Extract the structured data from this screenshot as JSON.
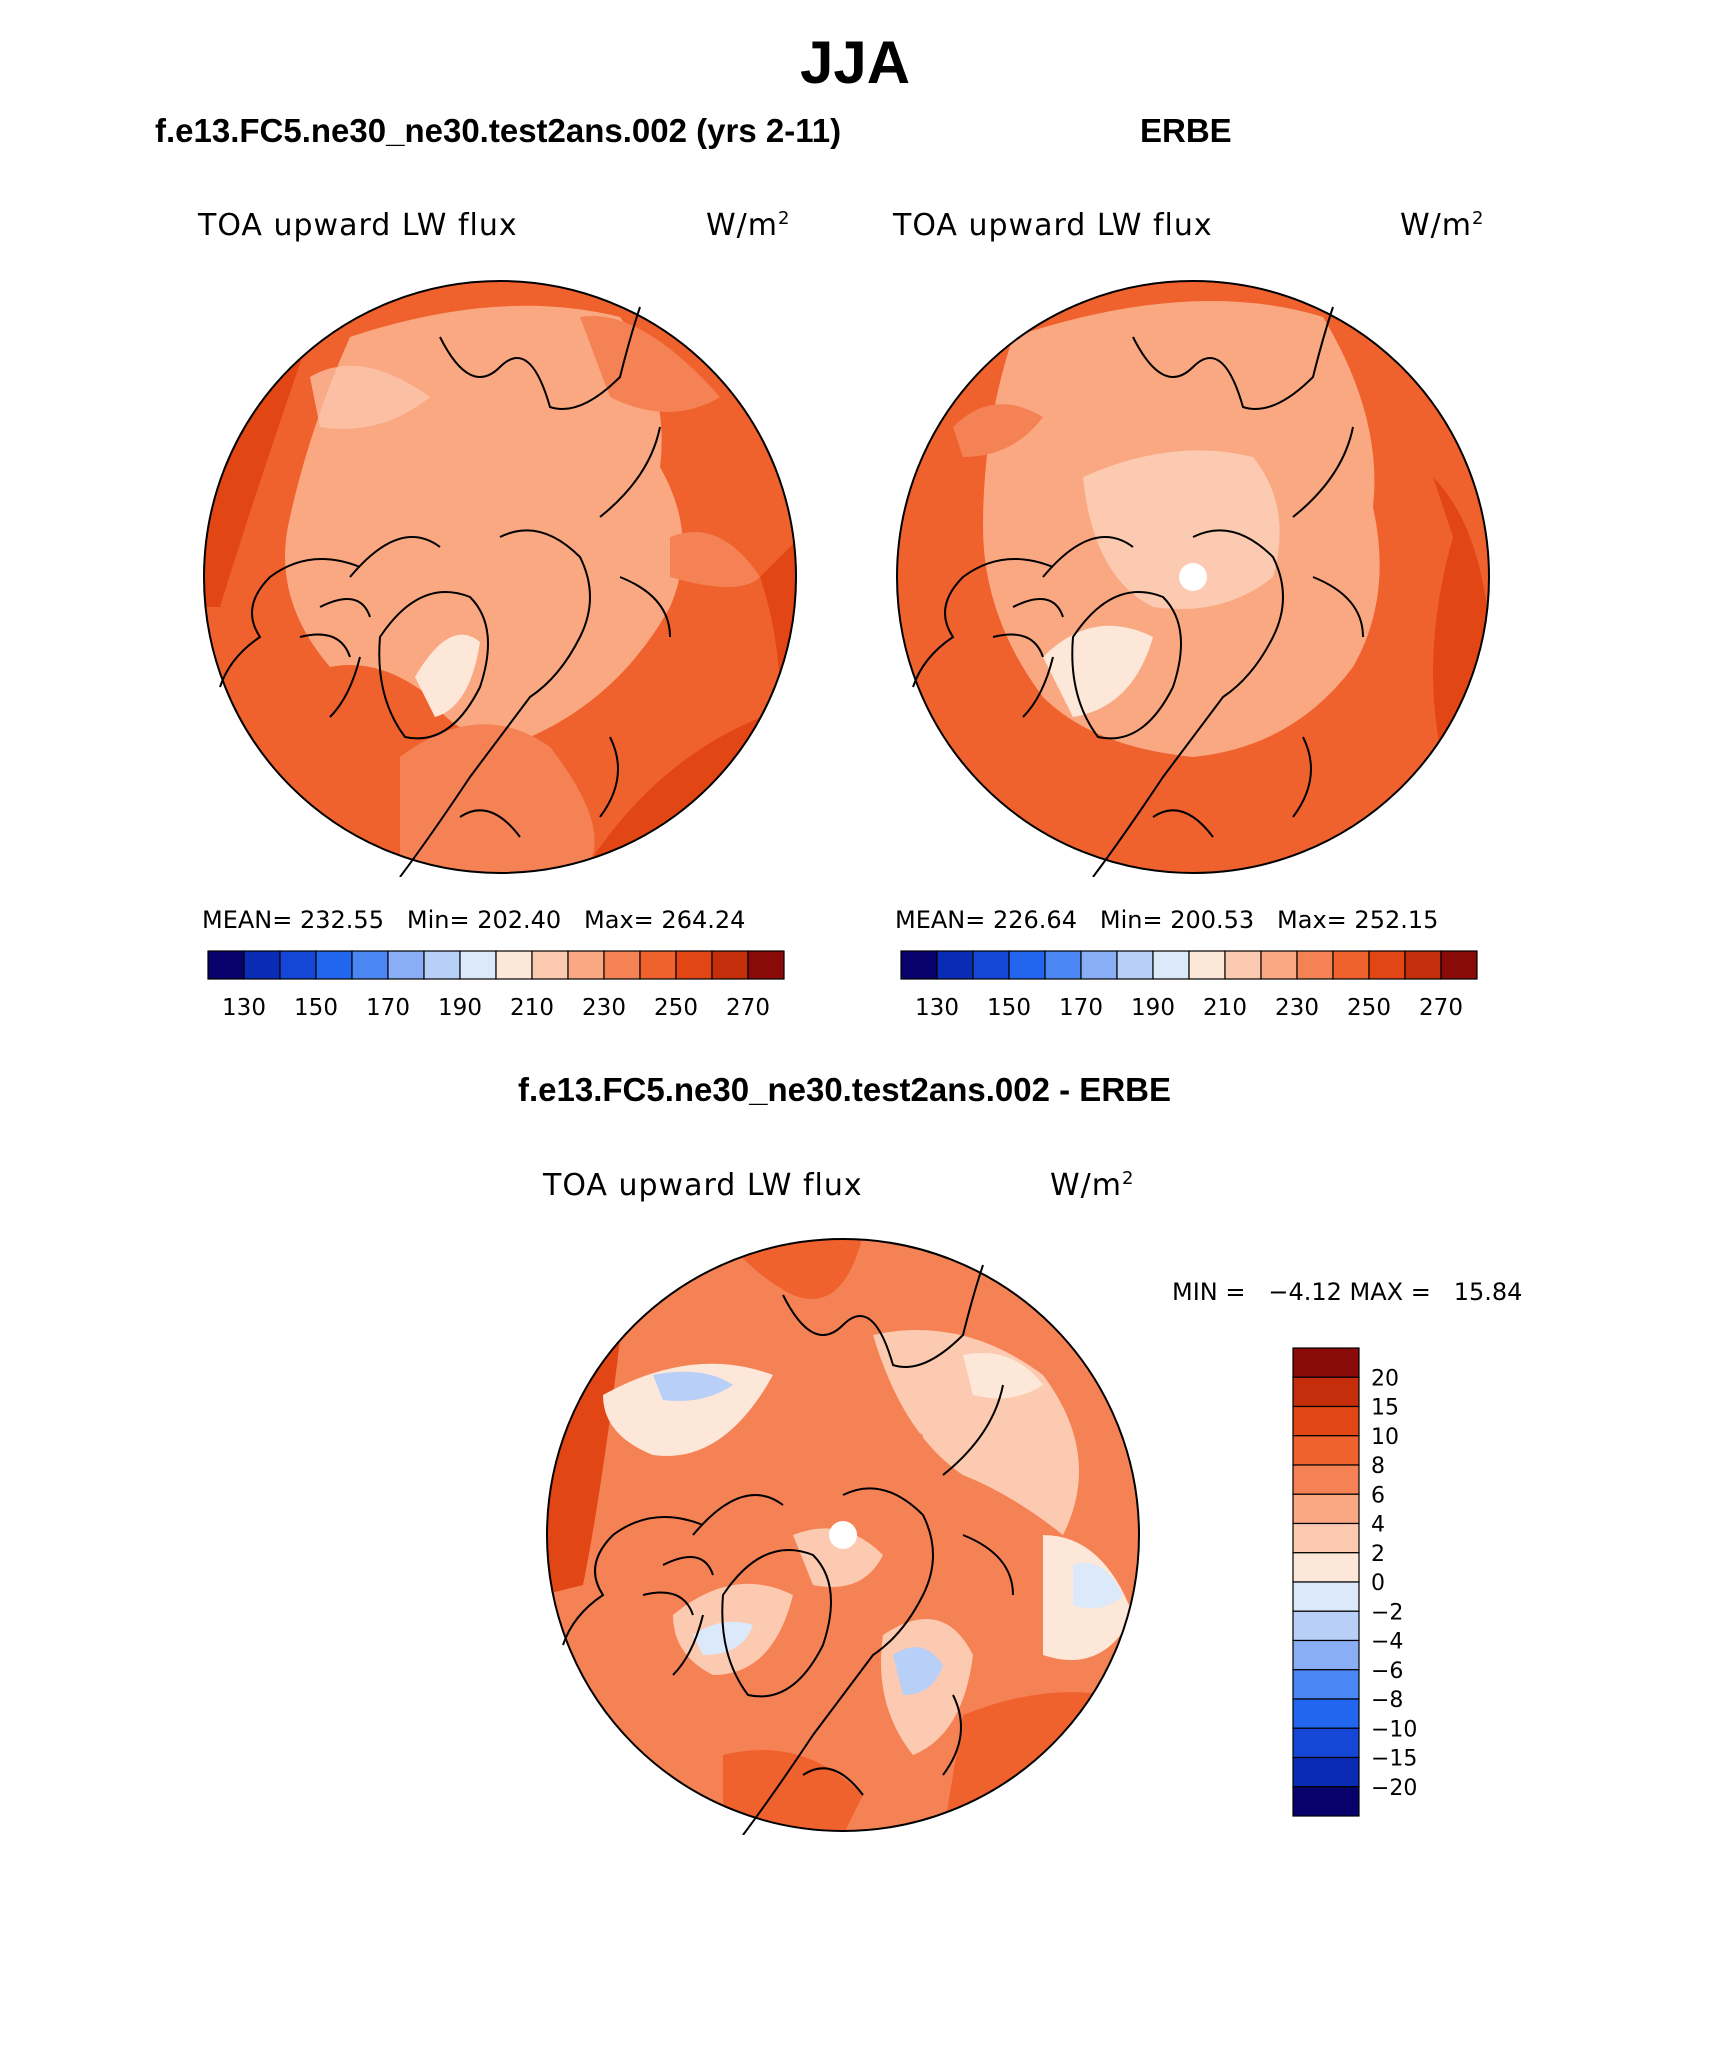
{
  "title": "JJA",
  "palette_abs": [
    "#08006b",
    "#0a2bb4",
    "#1447d6",
    "#2266f0",
    "#4b86f5",
    "#8aaef5",
    "#b8cff7",
    "#dbe9fb",
    "#fde7d8",
    "#fccab0",
    "#f9a882",
    "#f58255",
    "#f0622d",
    "#e24614",
    "#c42e0a",
    "#8a0a0a"
  ],
  "palette_diff": [
    "#08006b",
    "#0a2bb4",
    "#1447d6",
    "#2266f0",
    "#4b86f5",
    "#8aaef5",
    "#b8cff7",
    "#dbe9fb",
    "#fde7d8",
    "#fccab0",
    "#f9a882",
    "#f58255",
    "#f0622d",
    "#e24614",
    "#c42e0a",
    "#8a0a0a"
  ],
  "panels": [
    {
      "title": "f.e13.FC5.ne30_ne30.test2ans.002 (yrs 2-11)",
      "variable": "TOA upward LW flux",
      "units_base": "W/m",
      "units_exp": "2",
      "mean": "232.55",
      "min": "202.40",
      "max": "264.24",
      "colorbar_ticks": [
        "130",
        "150",
        "170",
        "190",
        "210",
        "230",
        "250",
        "270"
      ],
      "pole_hole": false
    },
    {
      "title": "ERBE",
      "variable": "TOA upward LW flux",
      "units_base": "W/m",
      "units_exp": "2",
      "mean": "226.64",
      "min": "200.53",
      "max": "252.15",
      "colorbar_ticks": [
        "130",
        "150",
        "170",
        "190",
        "210",
        "230",
        "250",
        "270"
      ],
      "pole_hole": true
    }
  ],
  "diff_panel": {
    "title": "f.e13.FC5.ne30_ne30.test2ans.002 - ERBE",
    "variable": "TOA upward LW flux",
    "units_base": "W/m",
    "units_exp": "2",
    "min_max_text": "MIN =   −4.12 MAX =   15.84",
    "colorbar_ticks": [
      "20",
      "15",
      "10",
      "8",
      "6",
      "4",
      "2",
      "0",
      "−2",
      "−4",
      "−6",
      "−8",
      "−10",
      "−15",
      "−20"
    ],
    "pole_hole": true
  }
}
